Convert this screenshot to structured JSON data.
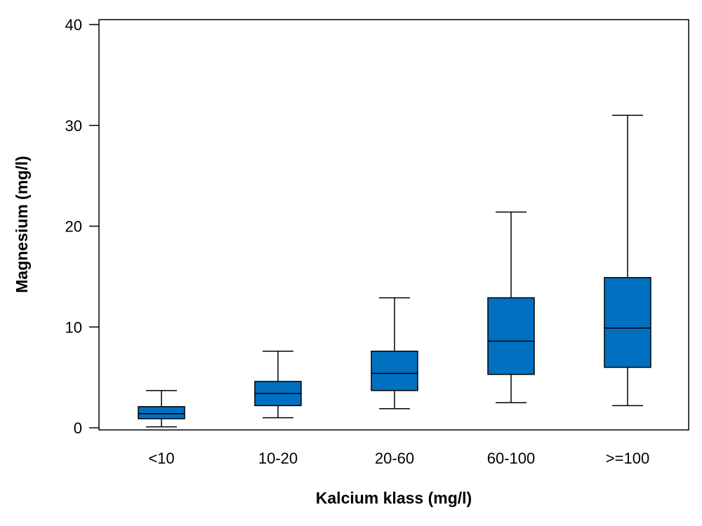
{
  "chart_data": {
    "type": "boxplot",
    "title": "",
    "xlabel": "Kalcium klass (mg/l)",
    "ylabel": "Magnesium (mg/l)",
    "ylim": [
      0,
      40
    ],
    "yticks": [
      0,
      10,
      20,
      30,
      40
    ],
    "grid": false,
    "legend": "none",
    "box_color": "#0070C0",
    "line_color": "#000000",
    "categories": [
      "<10",
      "10-20",
      "20-60",
      "60-100",
      ">=100"
    ],
    "series": [
      {
        "boxes": [
          {
            "category": "<10",
            "whisker_low": 0.1,
            "q1": 0.9,
            "median": 1.4,
            "q3": 2.1,
            "whisker_high": 3.7
          },
          {
            "category": "10-20",
            "whisker_low": 1.0,
            "q1": 2.2,
            "median": 3.4,
            "q3": 4.6,
            "whisker_high": 7.6
          },
          {
            "category": "20-60",
            "whisker_low": 1.9,
            "q1": 3.7,
            "median": 5.4,
            "q3": 7.6,
            "whisker_high": 12.9
          },
          {
            "category": "60-100",
            "whisker_low": 2.5,
            "q1": 5.3,
            "median": 8.6,
            "q3": 12.9,
            "whisker_high": 21.4
          },
          {
            "category": ">=100",
            "whisker_low": 2.2,
            "q1": 6.0,
            "median": 9.9,
            "q3": 14.9,
            "whisker_high": 31.0
          }
        ]
      }
    ]
  }
}
